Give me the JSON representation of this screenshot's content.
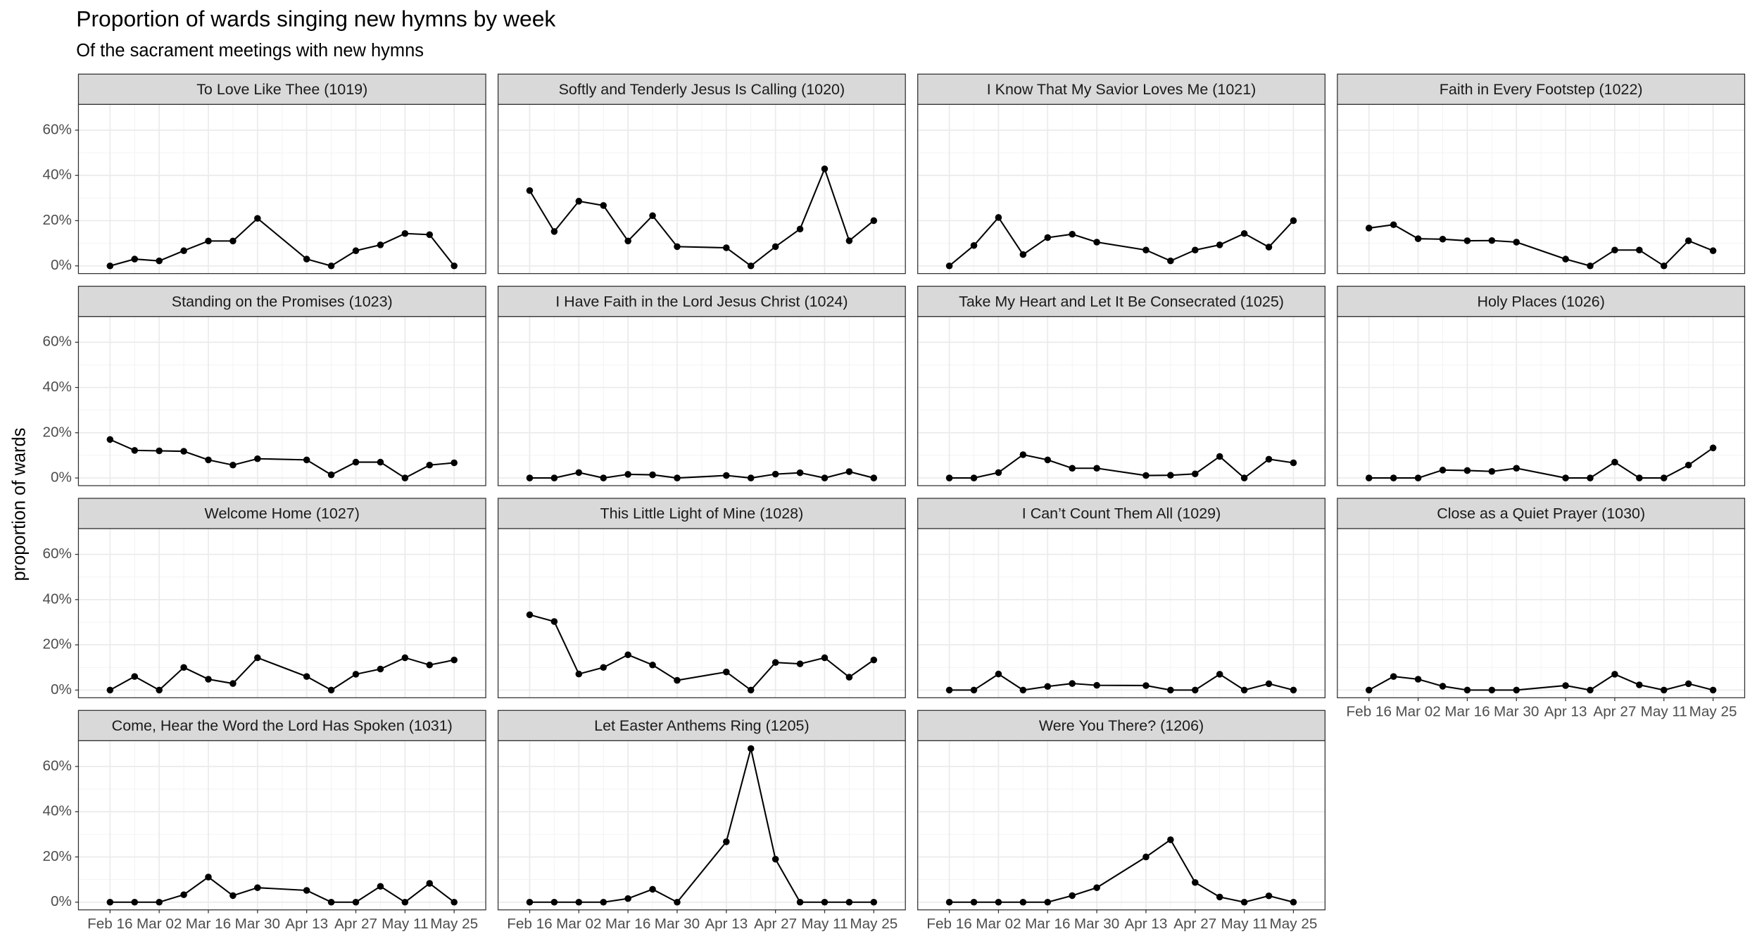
{
  "chart_data": {
    "type": "line",
    "title": "Proportion of wards singing new hymns by week",
    "subtitle": "Of the sacrament meetings with new hymns",
    "y_label": "proportion of wards",
    "x": [
      "Feb 16",
      "Feb 23",
      "Mar 02",
      "Mar 09",
      "Mar 16",
      "Mar 23",
      "Mar 30",
      "Apr 13",
      "Apr 20",
      "Apr 27",
      "May 04",
      "May 11",
      "May 18",
      "May 25"
    ],
    "xlim": [
      "Feb 07",
      "Jun 03"
    ],
    "xticks": [
      "Feb 16",
      "Mar 02",
      "Mar 16",
      "Mar 30",
      "Apr 13",
      "Apr 27",
      "May 11",
      "May 25"
    ],
    "ylim": [
      -3.4,
      71.4
    ],
    "yticks": [
      {
        "value": 0,
        "label": "0%"
      },
      {
        "value": 20,
        "label": "20%"
      },
      {
        "value": 40,
        "label": "40%"
      },
      {
        "value": 60,
        "label": "60%"
      }
    ],
    "grid": true,
    "minor_grid": true,
    "series": [
      {
        "name": "To Love Like Thee (1019)",
        "color": "#000000",
        "values": [
          0,
          3,
          2.2,
          6.7,
          11,
          11,
          21,
          3,
          0,
          6.7,
          9.3,
          14.3,
          13.8,
          0
        ]
      },
      {
        "name": "Softly and Tenderly Jesus Is Calling (1020)",
        "color": "#000000",
        "values": [
          33.3,
          15.2,
          28.6,
          26.7,
          11,
          22.2,
          8.5,
          8,
          0,
          8.5,
          16.3,
          42.9,
          11.1,
          20
        ]
      },
      {
        "name": "I Know That My Savior Loves Me (1021)",
        "color": "#000000",
        "values": [
          0,
          9,
          21.4,
          5,
          12.5,
          14,
          10.5,
          7,
          2.2,
          7,
          9.3,
          14.3,
          8.3,
          20
        ]
      },
      {
        "name": "Faith in Every Footstep (1022)",
        "color": "#000000",
        "values": [
          16.7,
          18.2,
          12,
          11.8,
          11.1,
          11.2,
          10.5,
          3,
          0,
          7,
          7,
          0,
          11.1,
          6.7
        ]
      },
      {
        "name": "Standing on the Promises (1023)",
        "color": "#000000",
        "values": [
          17,
          12.2,
          12,
          11.8,
          8,
          5.7,
          8.5,
          8,
          1.4,
          7,
          7,
          0,
          5.7,
          6.7
        ]
      },
      {
        "name": "I Have Faith in the Lord Jesus Christ (1024)",
        "color": "#000000",
        "values": [
          0,
          0,
          2.4,
          0,
          1.6,
          1.4,
          0,
          1.1,
          0,
          1.7,
          2.3,
          0,
          2.8,
          0
        ]
      },
      {
        "name": "Take My Heart and Let It Be Consecrated (1025)",
        "color": "#000000",
        "values": [
          0,
          0,
          2.4,
          10.3,
          8,
          4.3,
          4.3,
          1.1,
          1.2,
          1.8,
          9.5,
          0,
          8.3,
          6.7
        ]
      },
      {
        "name": "Holy Places (1026)",
        "color": "#000000",
        "values": [
          0,
          0,
          0,
          3.5,
          3.3,
          2.9,
          4.3,
          0,
          0,
          7,
          0,
          0,
          5.7,
          13.3
        ]
      },
      {
        "name": "Welcome Home (1027)",
        "color": "#000000",
        "values": [
          0,
          6,
          0,
          10,
          4.8,
          2.9,
          14.3,
          6,
          0,
          7,
          9.3,
          14.3,
          11.1,
          13.3
        ]
      },
      {
        "name": "This Little Light of Mine (1028)",
        "color": "#000000",
        "values": [
          33.3,
          30.3,
          7.1,
          10,
          15.6,
          11.1,
          4.3,
          8,
          0,
          12.2,
          11.6,
          14.3,
          5.7,
          13.3
        ]
      },
      {
        "name": "I Can’t Count Them All (1029)",
        "color": "#000000",
        "values": [
          0,
          0,
          7.1,
          0,
          1.6,
          2.9,
          2.1,
          2,
          0,
          0,
          7,
          0,
          2.8,
          0
        ]
      },
      {
        "name": "Close as a Quiet Prayer (1030)",
        "color": "#000000",
        "values": [
          0,
          6,
          4.8,
          1.7,
          0,
          0,
          0,
          2,
          0,
          7,
          2.3,
          0,
          2.8,
          0
        ]
      },
      {
        "name": "Come, Hear the Word the Lord Has Spoken (1031)",
        "color": "#000000",
        "values": [
          0,
          0,
          0,
          3.3,
          11.1,
          2.9,
          6.4,
          5.2,
          0,
          0,
          7,
          0,
          8.3,
          0
        ]
      },
      {
        "name": "Let Easter Anthems Ring (1205)",
        "color": "#000000",
        "values": [
          0,
          0,
          0,
          0,
          1.6,
          5.7,
          0,
          26.7,
          67.9,
          19,
          0,
          0,
          0,
          0
        ]
      },
      {
        "name": "Were You There? (1206)",
        "color": "#000000",
        "values": [
          0,
          0,
          0,
          0,
          0,
          2.9,
          6.4,
          20,
          27.6,
          8.7,
          2.3,
          0,
          2.8,
          0
        ]
      }
    ]
  }
}
